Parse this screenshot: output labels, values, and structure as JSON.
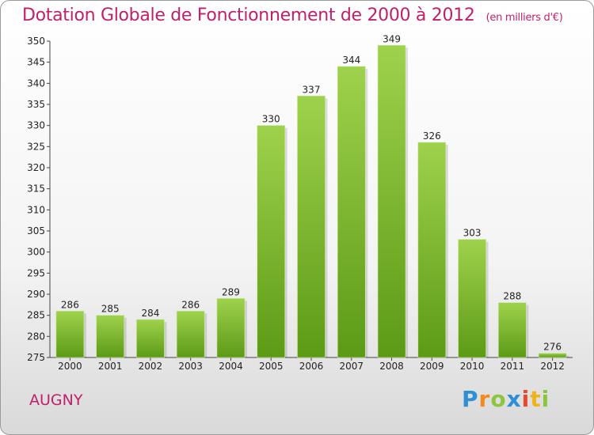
{
  "title": "Dotation Globale de Fonctionnement de 2000 à 2012",
  "unit": "(en milliers d'€)",
  "city": "AUGNY",
  "logo": {
    "letters": [
      "P",
      "r",
      "o",
      "x",
      "i",
      "t",
      "i"
    ],
    "colors": [
      "#2e8fd6",
      "#f28a1c",
      "#8cc63f",
      "#2e8fd6",
      "#e8482c",
      "#f2b21c",
      "#8cc63f"
    ]
  },
  "colors": {
    "bar_top": "#9fd24c",
    "bar_bottom": "#5c9a16",
    "title": "#c0206a"
  },
  "chart_data": {
    "type": "bar",
    "categories": [
      "2000",
      "2001",
      "2002",
      "2003",
      "2004",
      "2005",
      "2006",
      "2007",
      "2008",
      "2009",
      "2010",
      "2011",
      "2012"
    ],
    "values": [
      286,
      285,
      284,
      286,
      289,
      330,
      337,
      344,
      349,
      326,
      303,
      288,
      276
    ],
    "ylim": [
      275,
      350
    ],
    "yticks": [
      275,
      280,
      285,
      290,
      295,
      300,
      305,
      310,
      315,
      320,
      325,
      330,
      335,
      340,
      345,
      350
    ],
    "grid": false
  }
}
